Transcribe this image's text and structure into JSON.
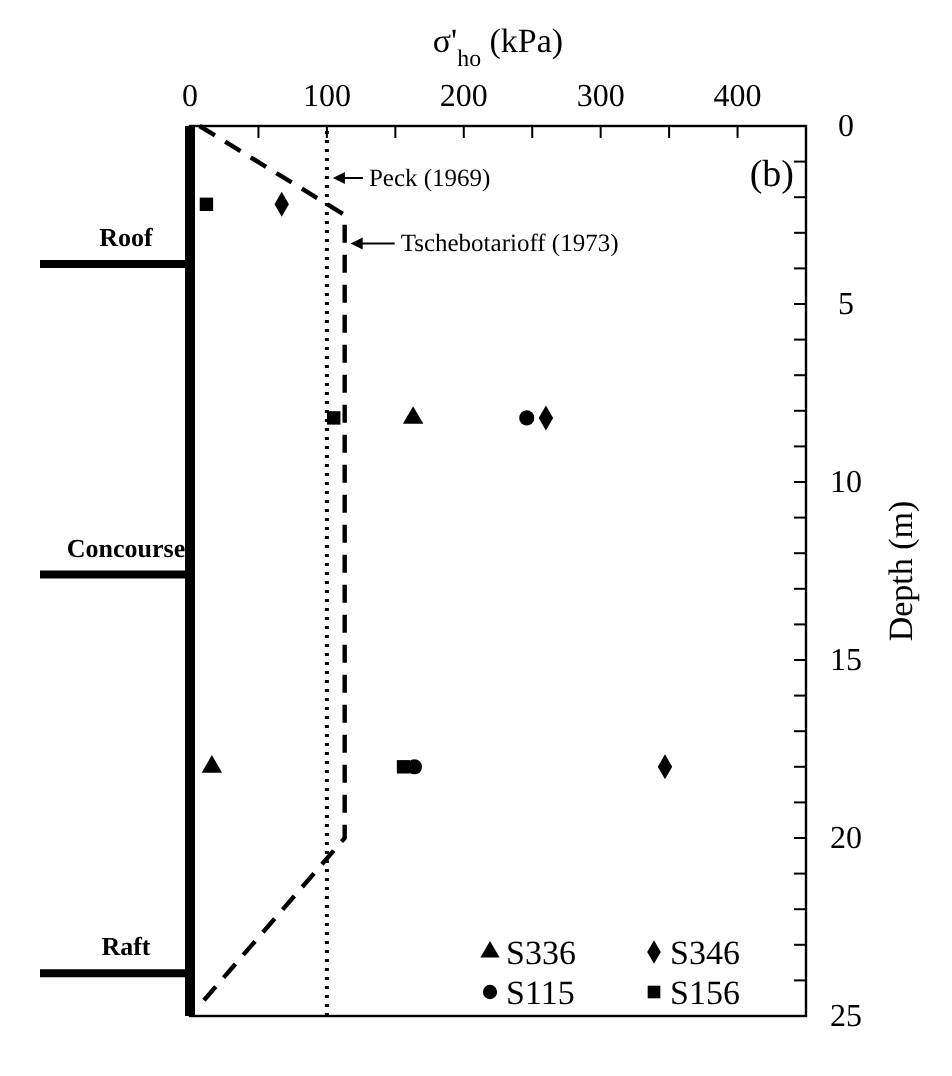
{
  "chart_data": {
    "type": "scatter",
    "xlabel": "σ'$_{ho}$ (kPa)",
    "ylabel": "Depth (m)",
    "xlim": [
      0,
      450
    ],
    "xticks": [
      0,
      {
        "value": 50,
        "label": null
      },
      100,
      {
        "value": 150,
        "label": null
      },
      200,
      {
        "value": 250,
        "label": null
      },
      300,
      {
        "value": 350,
        "label": null
      },
      400
    ],
    "ylim": [
      25,
      0
    ],
    "yticks": [
      0,
      {
        "value": 1,
        "label": null
      },
      {
        "value": 2,
        "label": null
      },
      {
        "value": 3,
        "label": null
      },
      {
        "value": 4,
        "label": null
      },
      5,
      {
        "value": 6,
        "label": null
      },
      {
        "value": 7,
        "label": null
      },
      {
        "value": 8,
        "label": null
      },
      {
        "value": 9,
        "label": null
      },
      10,
      {
        "value": 11,
        "label": null
      },
      {
        "value": 12,
        "label": null
      },
      {
        "value": 13,
        "label": null
      },
      {
        "value": 14,
        "label": null
      },
      15,
      {
        "value": 16,
        "label": null
      },
      {
        "value": 17,
        "label": null
      },
      {
        "value": 18,
        "label": null
      },
      {
        "value": 19,
        "label": null
      },
      20,
      {
        "value": 21,
        "label": null
      },
      {
        "value": 22,
        "label": null
      },
      {
        "value": 23,
        "label": null
      },
      {
        "value": 24,
        "label": null
      },
      25
    ],
    "legend": "bottom right",
    "grid": false,
    "series": [
      {
        "name": "S336",
        "color": "#000000",
        "marker": "triangle",
        "x": [
          163,
          16
        ],
        "values": [
          8.2,
          18
        ]
      },
      {
        "name": "S346",
        "color": "#000000",
        "marker": "diamond",
        "x": [
          67,
          260,
          347
        ],
        "values": [
          2.2,
          8.2,
          18
        ]
      },
      {
        "name": "S115",
        "color": "#000000",
        "marker": "circle",
        "x": [
          246,
          164
        ],
        "values": [
          8.2,
          18
        ]
      },
      {
        "name": "S156",
        "color": "#000000",
        "marker": "square",
        "x": [
          12,
          105,
          156
        ],
        "values": [
          2.2,
          8.2,
          18
        ]
      },
      {
        "type": "line",
        "color": "#000000",
        "line_style": "dashed",
        "marker": "none",
        "x": [
          7,
          113,
          113,
          7
        ],
        "values": [
          0,
          2.5,
          20,
          24.7
        ]
      }
    ],
    "ref_lines": [
      {
        "axis": "x",
        "value": 100,
        "label": "Peck (1969)",
        "line_style": "dotted",
        "color": "#000000"
      }
    ],
    "annotations": [
      "(b)",
      {
        "text": "Tschebotarioff (1973)",
        "x": 113,
        "y": 3.3
      },
      "Roof",
      "Concourse",
      "Raft"
    ]
  }
}
